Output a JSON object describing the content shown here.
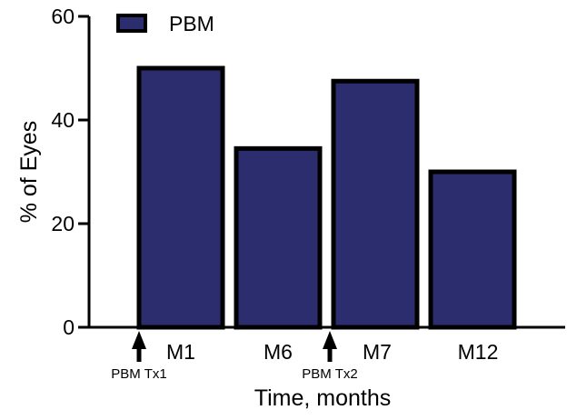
{
  "chart_data": {
    "type": "bar",
    "title": "",
    "xlabel": "Time, months",
    "ylabel": "% of Eyes",
    "categories": [
      "M1",
      "M6",
      "M7",
      "M12"
    ],
    "series": [
      {
        "name": "PBM",
        "values": [
          50,
          34.5,
          47.5,
          30
        ]
      }
    ],
    "ylim": [
      0,
      60
    ],
    "yticks": [
      "0",
      "20",
      "40",
      "60"
    ],
    "legend": {
      "placement": "top-left",
      "entries": [
        "PBM"
      ]
    },
    "grid": false,
    "annotations": [
      {
        "label": "PBM Tx1",
        "before_category": "M1"
      },
      {
        "label": "PBM Tx2",
        "before_category": "M7"
      }
    ],
    "colors": {
      "bar_fill": "#2b2d6e",
      "bar_stroke": "#000000",
      "axis": "#000000"
    }
  }
}
